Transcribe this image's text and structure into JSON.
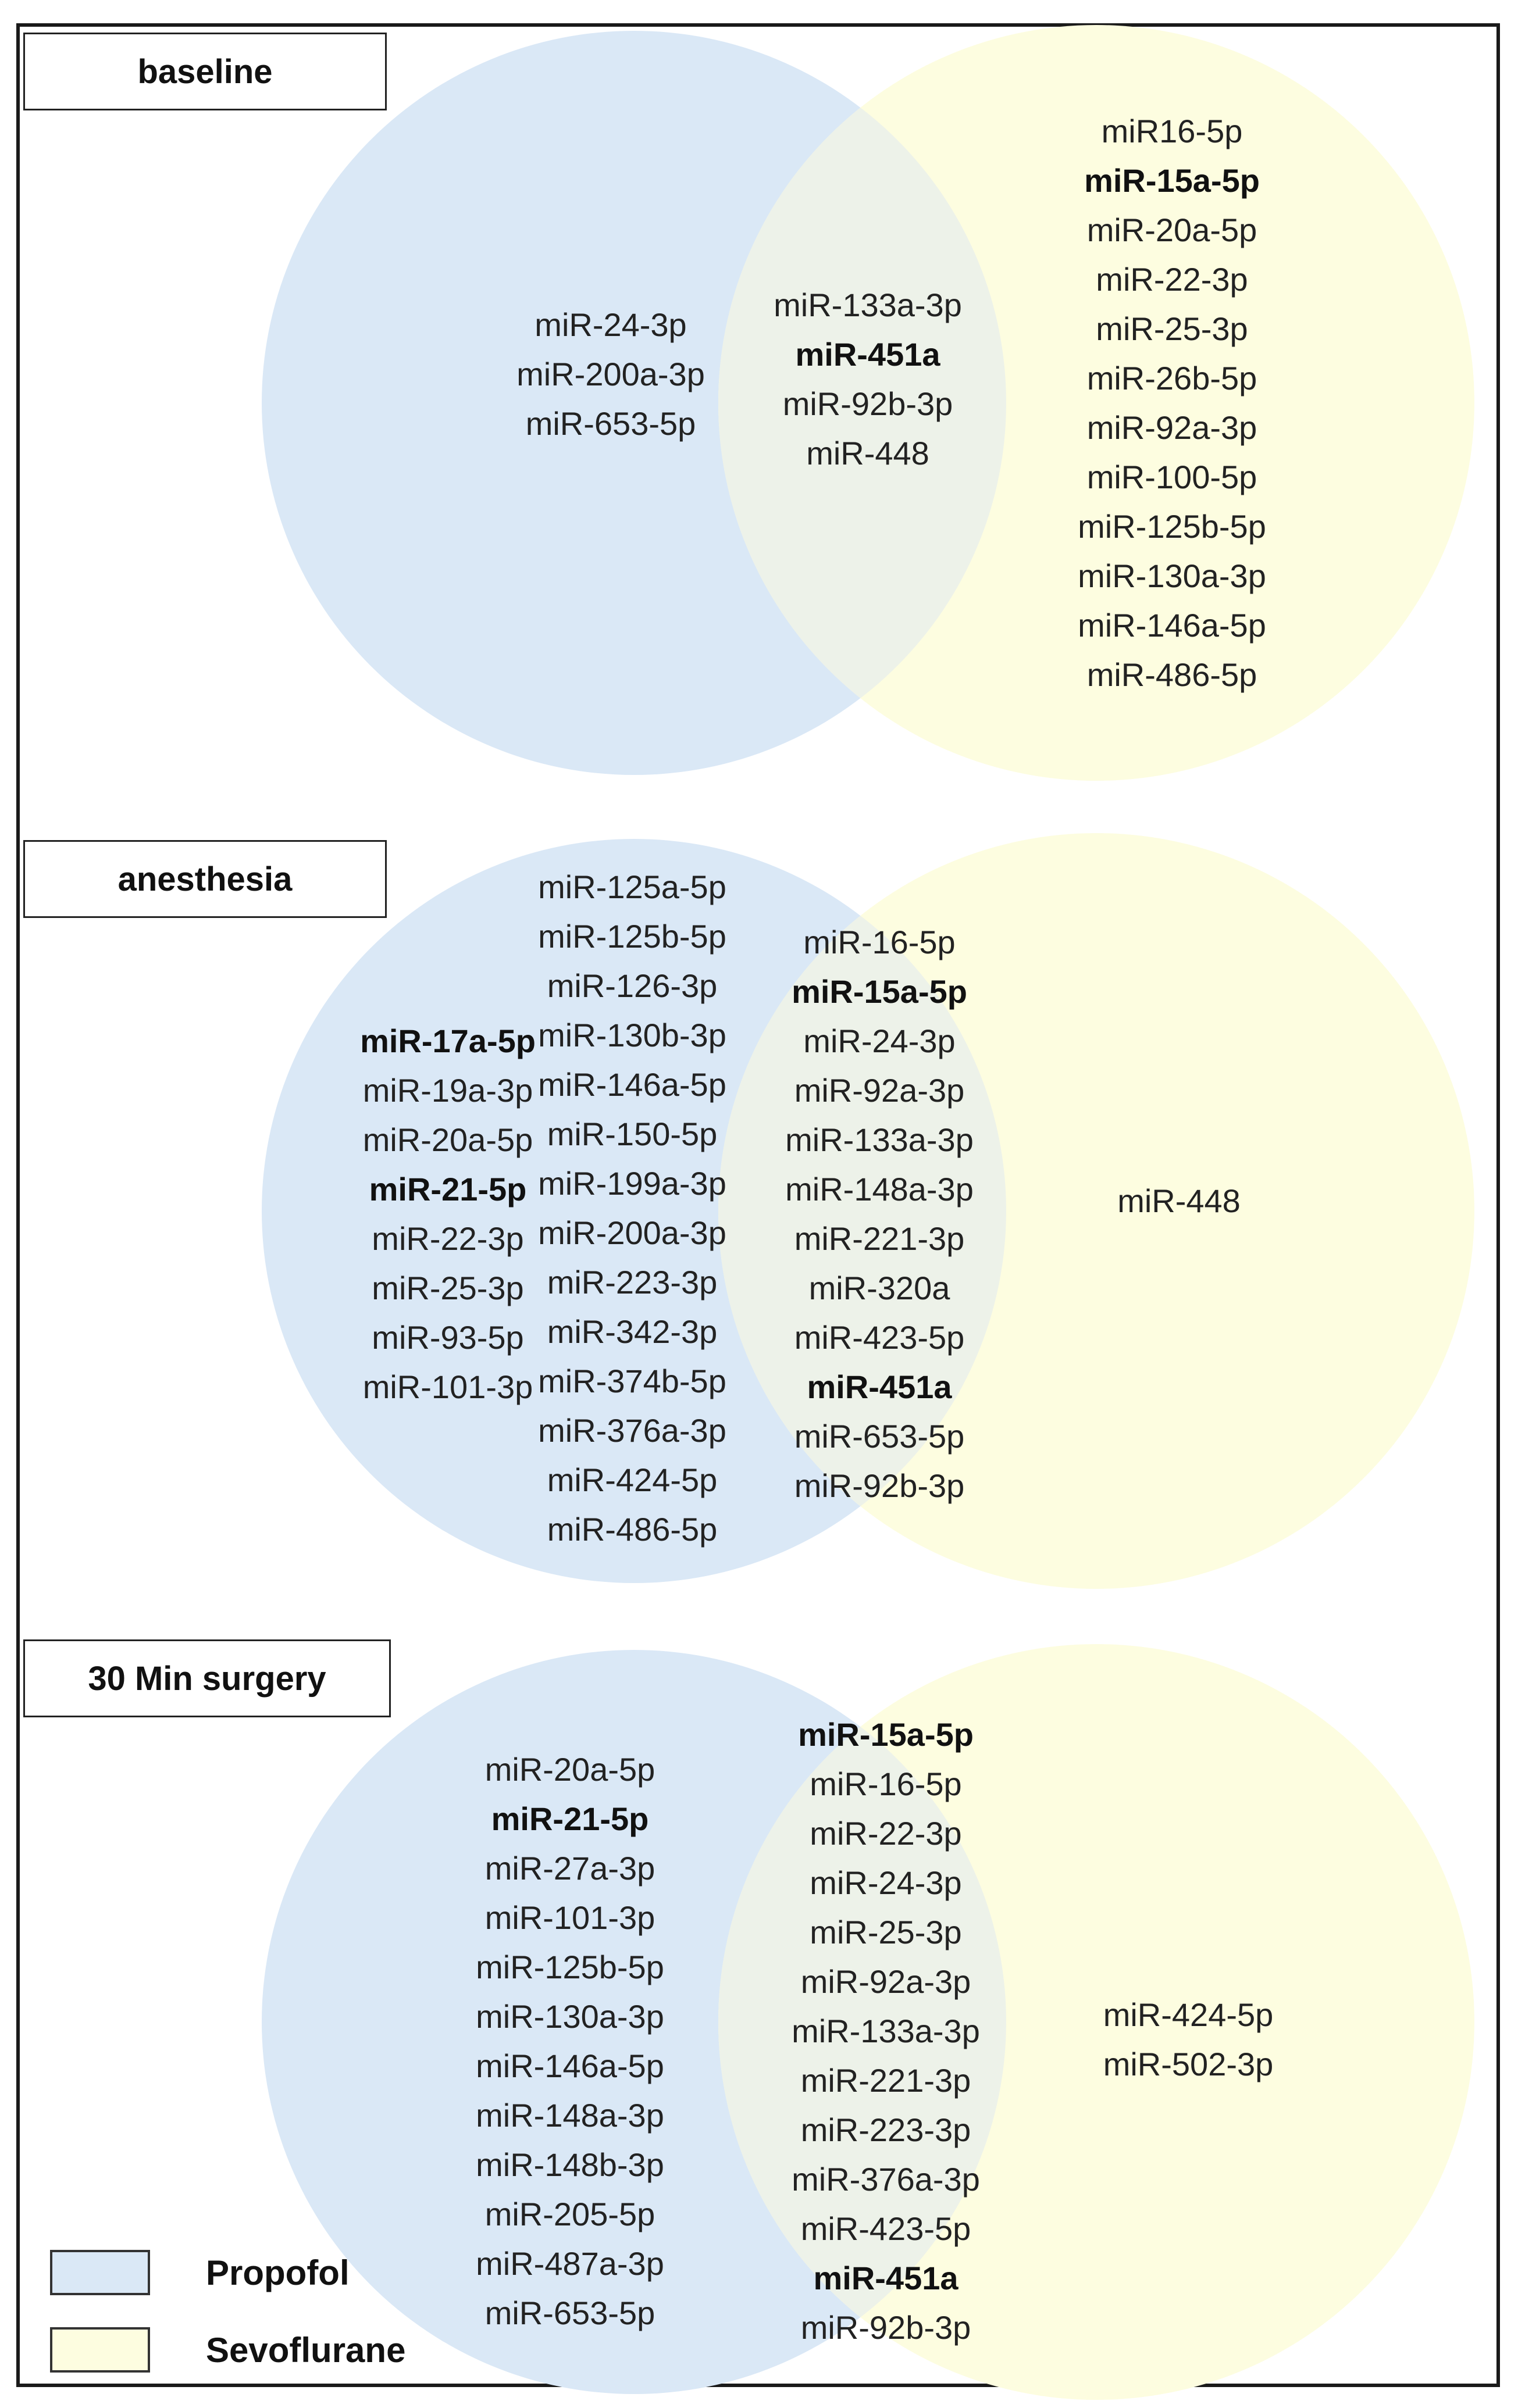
{
  "colors": {
    "propofol": "#dae8f6",
    "sevoflurane": "#fdfde0",
    "overlap": "#edf2e9"
  },
  "legend": {
    "propofol": "Propofol",
    "sevoflurane": "Sevoflurane"
  },
  "panels": [
    {
      "id": "baseline",
      "title": "baseline",
      "propofol_only": [
        {
          "name": "miR-24-3p",
          "bold": false
        },
        {
          "name": "miR-200a-3p",
          "bold": false
        },
        {
          "name": "miR-653-5p",
          "bold": false
        }
      ],
      "shared_cols": [
        [
          {
            "name": "miR-133a-3p",
            "bold": false
          },
          {
            "name": "miR-451a",
            "bold": true
          },
          {
            "name": "miR-92b-3p",
            "bold": false
          },
          {
            "name": "miR-448",
            "bold": false
          }
        ]
      ],
      "sevoflurane_only": [
        {
          "name": "miR16-5p",
          "bold": false
        },
        {
          "name": "miR-15a-5p",
          "bold": true
        },
        {
          "name": "miR-20a-5p",
          "bold": false
        },
        {
          "name": "miR-22-3p",
          "bold": false
        },
        {
          "name": "miR-25-3p",
          "bold": false
        },
        {
          "name": "miR-26b-5p",
          "bold": false
        },
        {
          "name": "miR-92a-3p",
          "bold": false
        },
        {
          "name": "miR-100-5p",
          "bold": false
        },
        {
          "name": "miR-125b-5p",
          "bold": false
        },
        {
          "name": "miR-130a-3p",
          "bold": false
        },
        {
          "name": "miR-146a-5p",
          "bold": false
        },
        {
          "name": "miR-486-5p",
          "bold": false
        }
      ]
    },
    {
      "id": "anesthesia",
      "title": "anesthesia",
      "propofol_only_cols": [
        [
          {
            "name": "miR-17a-5p",
            "bold": true
          },
          {
            "name": "miR-19a-3p",
            "bold": false
          },
          {
            "name": "miR-20a-5p",
            "bold": false
          },
          {
            "name": "miR-21-5p",
            "bold": true
          },
          {
            "name": "miR-22-3p",
            "bold": false
          },
          {
            "name": "miR-25-3p",
            "bold": false
          },
          {
            "name": "miR-93-5p",
            "bold": false
          },
          {
            "name": "miR-101-3p",
            "bold": false
          }
        ],
        [
          {
            "name": "miR-125a-5p",
            "bold": false
          },
          {
            "name": "miR-125b-5p",
            "bold": false
          },
          {
            "name": "miR-126-3p",
            "bold": false
          },
          {
            "name": "miR-130b-3p",
            "bold": false
          },
          {
            "name": "miR-146a-5p",
            "bold": false
          },
          {
            "name": "miR-150-5p",
            "bold": false
          },
          {
            "name": "miR-199a-3p",
            "bold": false
          },
          {
            "name": "miR-200a-3p",
            "bold": false
          },
          {
            "name": "miR-223-3p",
            "bold": false
          },
          {
            "name": "miR-342-3p",
            "bold": false
          },
          {
            "name": "miR-374b-5p",
            "bold": false
          },
          {
            "name": "miR-376a-3p",
            "bold": false
          },
          {
            "name": "miR-424-5p",
            "bold": false
          },
          {
            "name": "miR-486-5p",
            "bold": false
          }
        ]
      ],
      "shared": [
        {
          "name": "miR-16-5p",
          "bold": false
        },
        {
          "name": "miR-15a-5p",
          "bold": true
        },
        {
          "name": "miR-24-3p",
          "bold": false
        },
        {
          "name": "miR-92a-3p",
          "bold": false
        },
        {
          "name": "miR-133a-3p",
          "bold": false
        },
        {
          "name": "miR-148a-3p",
          "bold": false
        },
        {
          "name": "miR-221-3p",
          "bold": false
        },
        {
          "name": "miR-320a",
          "bold": false
        },
        {
          "name": "miR-423-5p",
          "bold": false
        },
        {
          "name": "miR-451a",
          "bold": true
        },
        {
          "name": "miR-653-5p",
          "bold": false
        },
        {
          "name": "miR-92b-3p",
          "bold": false
        }
      ],
      "sevoflurane_only": [
        {
          "name": "miR-448",
          "bold": false
        }
      ]
    },
    {
      "id": "surgery",
      "title": "30 Min surgery",
      "propofol_only": [
        {
          "name": "miR-20a-5p",
          "bold": false
        },
        {
          "name": "miR-21-5p",
          "bold": true
        },
        {
          "name": "miR-27a-3p",
          "bold": false
        },
        {
          "name": "miR-101-3p",
          "bold": false
        },
        {
          "name": "miR-125b-5p",
          "bold": false
        },
        {
          "name": "miR-130a-3p",
          "bold": false
        },
        {
          "name": "miR-146a-5p",
          "bold": false
        },
        {
          "name": "miR-148a-3p",
          "bold": false
        },
        {
          "name": "miR-148b-3p",
          "bold": false
        },
        {
          "name": "miR-205-5p",
          "bold": false
        },
        {
          "name": "miR-487a-3p",
          "bold": false
        },
        {
          "name": "miR-653-5p",
          "bold": false
        }
      ],
      "shared": [
        {
          "name": "miR-15a-5p",
          "bold": true
        },
        {
          "name": "miR-16-5p",
          "bold": false
        },
        {
          "name": "miR-22-3p",
          "bold": false
        },
        {
          "name": "miR-24-3p",
          "bold": false
        },
        {
          "name": "miR-25-3p",
          "bold": false
        },
        {
          "name": "miR-92a-3p",
          "bold": false
        },
        {
          "name": "miR-133a-3p",
          "bold": false
        },
        {
          "name": "miR-221-3p",
          "bold": false
        },
        {
          "name": "miR-223-3p",
          "bold": false
        },
        {
          "name": "miR-376a-3p",
          "bold": false
        },
        {
          "name": "miR-423-5p",
          "bold": false
        },
        {
          "name": "miR-451a",
          "bold": true
        },
        {
          "name": "miR-92b-3p",
          "bold": false
        }
      ],
      "sevoflurane_only": [
        {
          "name": "miR-424-5p",
          "bold": false
        },
        {
          "name": "miR-502-3p",
          "bold": false
        }
      ]
    }
  ]
}
